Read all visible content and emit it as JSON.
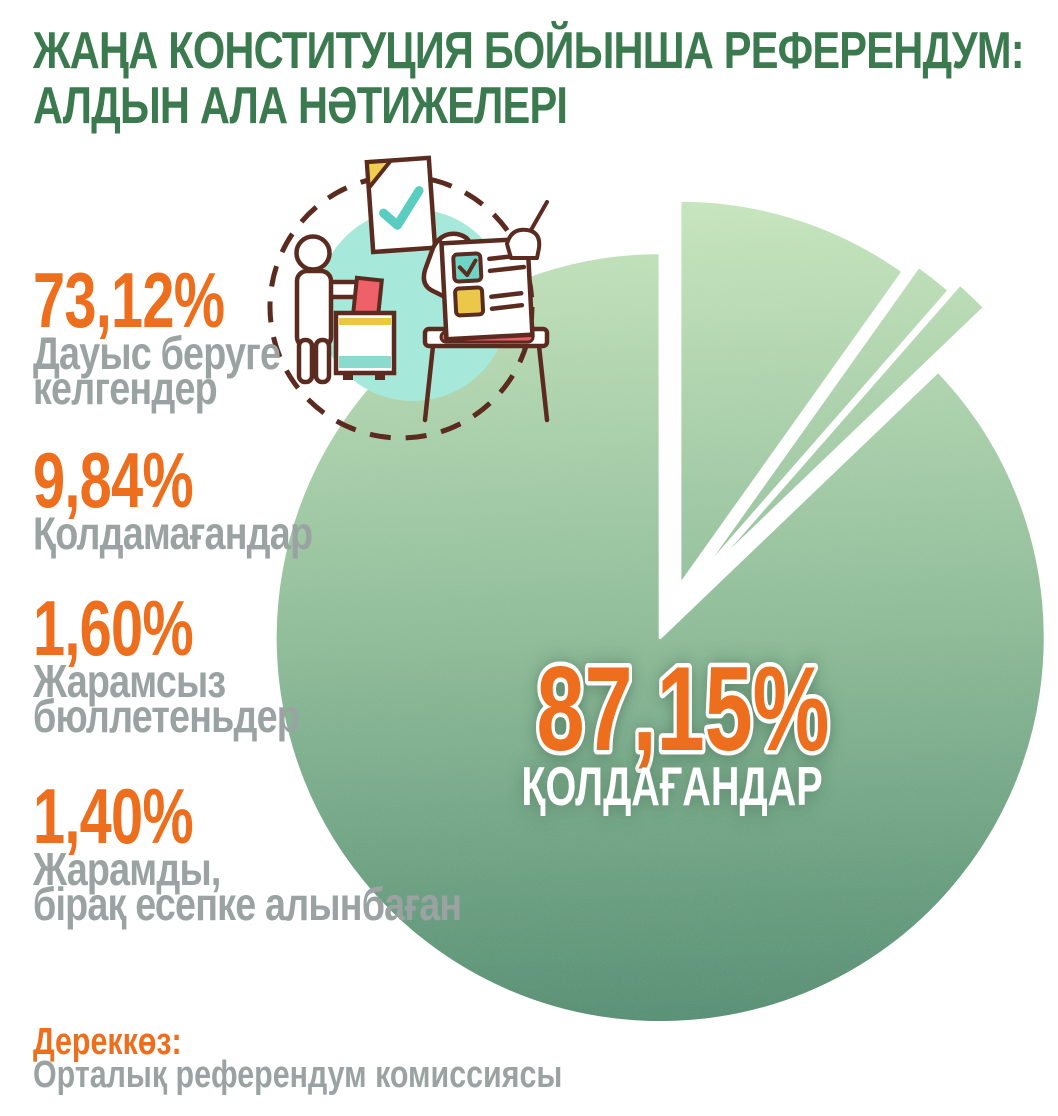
{
  "title": {
    "line1": "ЖАҢА КОНСТИТУЦИЯ БОЙЫНША РЕФЕРЕНДУМ:",
    "line2": "АЛДЫН АЛА НӘТИЖЕЛЕРІ"
  },
  "stats": [
    {
      "value": "73,12%",
      "label": "Дауыс беруге келгендер",
      "label_lines": [
        "Дауыс беруге",
        "келгендер"
      ]
    },
    {
      "value": "9,84%",
      "label": "Қолдамағандар",
      "label_lines": [
        "Қолдамағандар"
      ]
    },
    {
      "value": "1,60%",
      "label": "Жарамсыз бюллетеньдер",
      "label_lines": [
        "Жарамсыз",
        "бюллетеньдер"
      ]
    },
    {
      "value": "1,40%",
      "label": "Жарамды, бірақ есепке алынбаған",
      "label_lines": [
        "Жарамды,",
        "бірақ есепке алынбаған"
      ]
    }
  ],
  "chart_data": {
    "type": "pie",
    "title": "Жаңа Конституция бойынша референдум: алдын ала нәтижелері",
    "slices": [
      {
        "label": "Қолдағандар",
        "value": 87.15,
        "display": "87,15%"
      },
      {
        "label": "Қолдамағандар",
        "value": 9.84,
        "display": "9,84%"
      },
      {
        "label": "Жарамсыз бюллетеньдер",
        "value": 1.6,
        "display": "1,60%"
      },
      {
        "label": "Жарамды, бірақ есепке алынбаған",
        "value": 1.4,
        "display": "1,40%"
      }
    ],
    "turnout_note": {
      "value": 73.12,
      "display": "73,12%",
      "label": "Дауыс беруге келгендер"
    },
    "center_label": {
      "value": "87,15%",
      "text": "ҚОЛДАҒАНДАР"
    },
    "legend_position": "left",
    "start_angle_deg": 0,
    "direction": "clockwise"
  },
  "source": {
    "label": "Дереккөз:",
    "text": "Орталық референдум комиссиясы"
  },
  "illustration": {
    "icons": [
      "hand-holding-ballot",
      "voter-at-ballot-box",
      "ballot-sheet-on-table",
      "dashed-circle"
    ]
  },
  "colors": {
    "title_green": "#3a7a4e",
    "accent_orange": "#ed6e1d",
    "label_gray": "#9aa3a1",
    "pie_gradient_top": "#c6e5bc",
    "pie_gradient_mid": "#8fbd98",
    "pie_gradient_bottom": "#4e8c6e",
    "illustration_outline": "#5b2b20",
    "illustration_teal": "#a6e8da",
    "illustration_yellow": "#ecc84a",
    "illustration_red": "#e85d67"
  }
}
